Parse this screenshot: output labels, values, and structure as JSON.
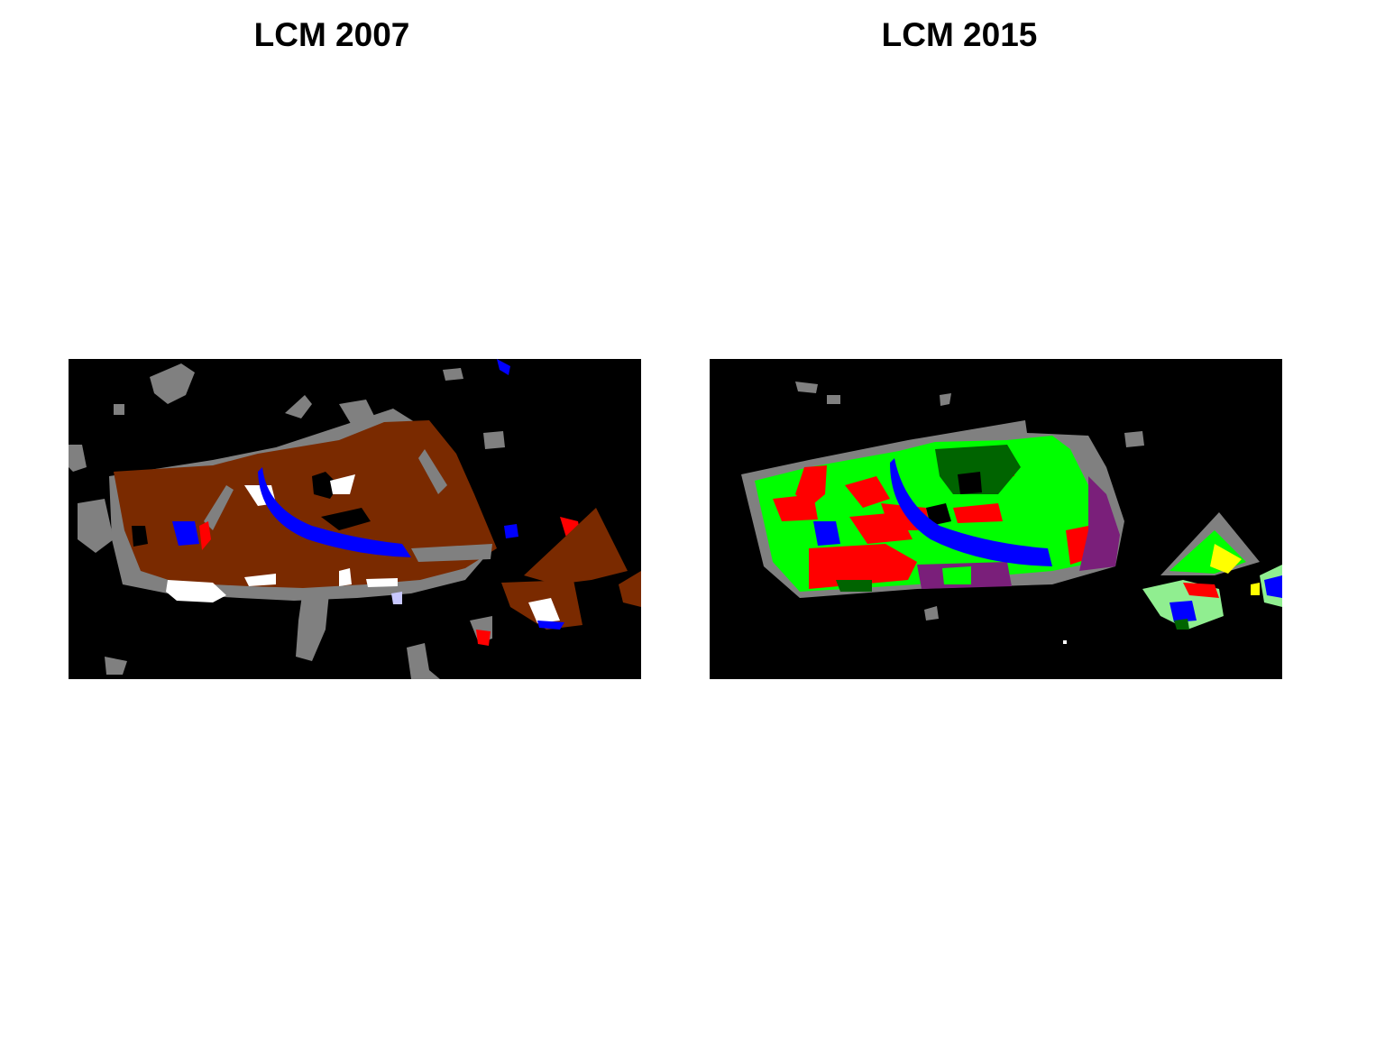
{
  "panels": [
    {
      "title": "LCM 2007"
    },
    {
      "title": "LCM 2015"
    }
  ],
  "colors": {
    "background": "#000000",
    "urban": "#808080",
    "brown": "#7a2a00",
    "water": "#0000ff",
    "red": "#ff0000",
    "white": "#ffffff",
    "bright_green": "#00ff00",
    "dark_green": "#006400",
    "purple": "#7a1f7a",
    "light_green": "#90ee90",
    "yellow": "#ffff00",
    "lavender": "#c8c8ff"
  }
}
